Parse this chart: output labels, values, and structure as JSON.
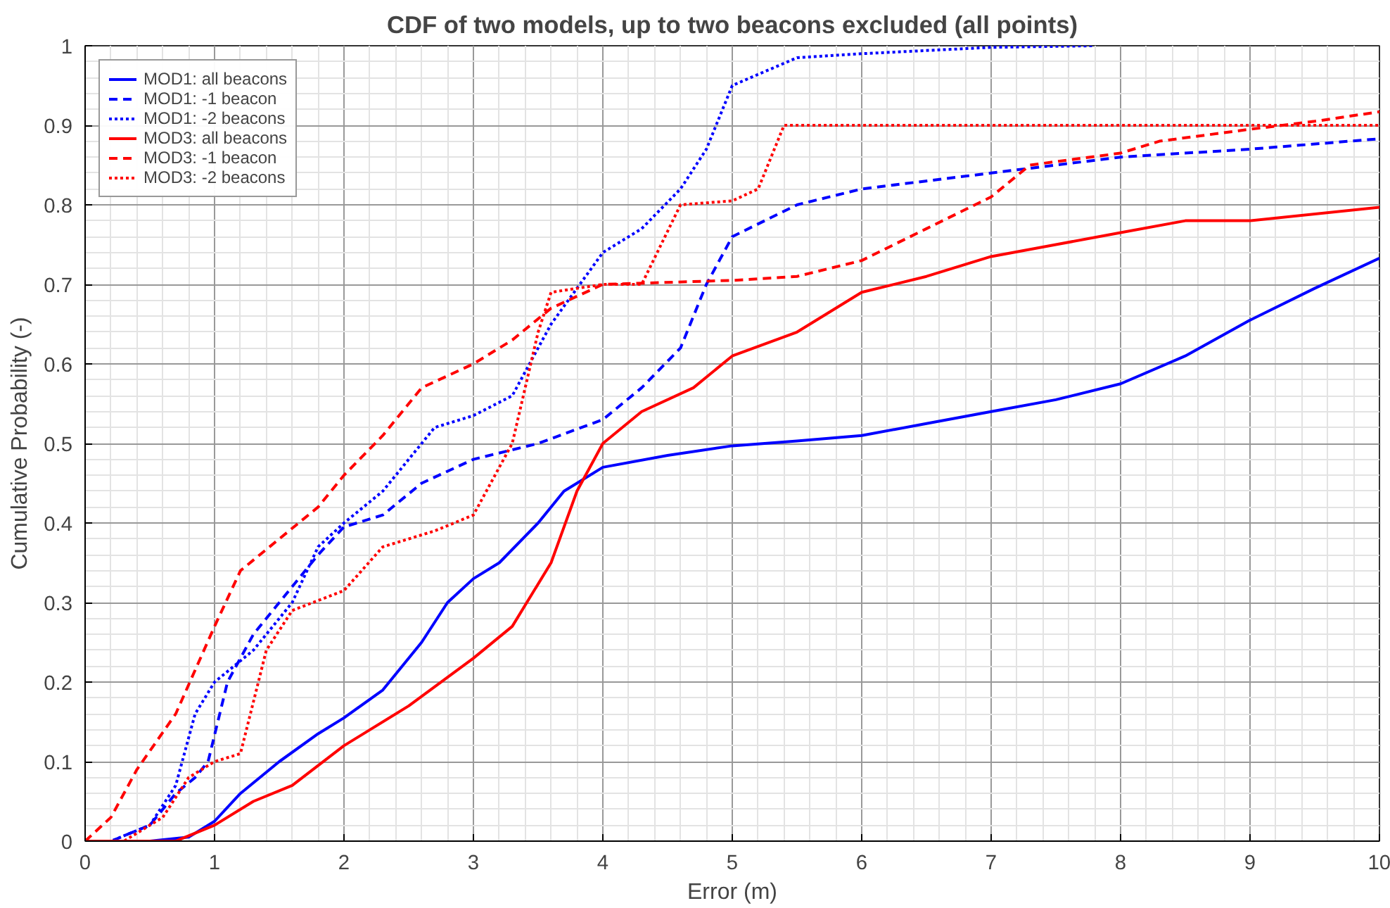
{
  "chart_data": {
    "type": "line",
    "title": "CDF of two models, up to two beacons excluded (all points)",
    "xlabel": "Error (m)",
    "ylabel": "Cumulative Probability (-)",
    "xlim": [
      0,
      10
    ],
    "ylim": [
      0,
      1
    ],
    "xticks": [
      0,
      1,
      2,
      3,
      4,
      5,
      6,
      7,
      8,
      9,
      10
    ],
    "yticks": [
      0,
      0.1,
      0.2,
      0.3,
      0.4,
      0.5,
      0.6,
      0.7,
      0.8,
      0.9,
      1
    ],
    "grid": true,
    "legend": "top left",
    "marker": "none",
    "series": [
      {
        "name": "MOD1: all beacons",
        "color": "#0000ff",
        "line_style": "solid",
        "x": [
          0,
          0.5,
          0.8,
          1.0,
          1.2,
          1.5,
          1.8,
          2.0,
          2.3,
          2.6,
          2.8,
          3.0,
          3.2,
          3.5,
          3.7,
          4.0,
          4.5,
          5.0,
          5.5,
          6.0,
          6.5,
          7.0,
          7.5,
          8.0,
          8.5,
          9.0,
          9.5,
          10
        ],
        "values": [
          0,
          0,
          0.005,
          0.025,
          0.06,
          0.1,
          0.135,
          0.155,
          0.19,
          0.25,
          0.3,
          0.33,
          0.35,
          0.4,
          0.44,
          0.47,
          0.485,
          0.497,
          0.503,
          0.51,
          0.525,
          0.54,
          0.555,
          0.575,
          0.61,
          0.655,
          0.695,
          0.733
        ]
      },
      {
        "name": "MOD1: -1 beacon",
        "color": "#0000ff",
        "line_style": "dashed",
        "x": [
          0,
          0.2,
          0.5,
          0.7,
          0.85,
          0.95,
          1.1,
          1.3,
          1.5,
          1.8,
          2.0,
          2.3,
          2.6,
          3.0,
          3.5,
          4.0,
          4.3,
          4.6,
          4.8,
          5.0,
          5.5,
          6.0,
          7.0,
          8.0,
          9.0,
          10
        ],
        "values": [
          0,
          0,
          0.02,
          0.06,
          0.08,
          0.1,
          0.2,
          0.26,
          0.3,
          0.36,
          0.395,
          0.41,
          0.45,
          0.48,
          0.5,
          0.53,
          0.57,
          0.62,
          0.7,
          0.76,
          0.8,
          0.82,
          0.84,
          0.86,
          0.87,
          0.883
        ]
      },
      {
        "name": "MOD1: -2 beacons",
        "color": "#0000ff",
        "line_style": "dotted",
        "x": [
          0,
          0.2,
          0.5,
          0.7,
          0.85,
          1.0,
          1.3,
          1.6,
          1.8,
          2.0,
          2.3,
          2.7,
          3.0,
          3.3,
          3.6,
          4.0,
          4.3,
          4.6,
          4.8,
          5.0,
          5.5,
          6.0,
          7.0,
          7.8
        ],
        "values": [
          0,
          0,
          0.02,
          0.07,
          0.16,
          0.2,
          0.24,
          0.3,
          0.37,
          0.4,
          0.44,
          0.52,
          0.535,
          0.56,
          0.65,
          0.74,
          0.77,
          0.82,
          0.87,
          0.95,
          0.985,
          0.99,
          0.998,
          1
        ]
      },
      {
        "name": "MOD3: all beacons",
        "color": "#ff0000",
        "line_style": "solid",
        "x": [
          0,
          0.7,
          1.0,
          1.3,
          1.6,
          2.0,
          2.5,
          3.0,
          3.3,
          3.6,
          3.8,
          4.0,
          4.3,
          4.7,
          5.0,
          5.5,
          6.0,
          6.5,
          7.0,
          7.5,
          8.0,
          8.5,
          9.0,
          10
        ],
        "values": [
          0,
          0,
          0.02,
          0.05,
          0.07,
          0.12,
          0.17,
          0.23,
          0.27,
          0.35,
          0.44,
          0.5,
          0.54,
          0.57,
          0.61,
          0.64,
          0.69,
          0.71,
          0.735,
          0.75,
          0.765,
          0.78,
          0.78,
          0.797
        ]
      },
      {
        "name": "MOD3: -1 beacon",
        "color": "#ff0000",
        "line_style": "dashed",
        "x": [
          0,
          0.2,
          0.4,
          0.7,
          1.0,
          1.2,
          1.5,
          1.8,
          2.0,
          2.3,
          2.6,
          3.0,
          3.3,
          3.6,
          4.0,
          5.0,
          5.5,
          6.0,
          6.5,
          7.0,
          7.3,
          8.0,
          8.3,
          9.0,
          9.5,
          10
        ],
        "values": [
          0,
          0.03,
          0.09,
          0.16,
          0.27,
          0.34,
          0.38,
          0.42,
          0.46,
          0.51,
          0.57,
          0.6,
          0.63,
          0.67,
          0.7,
          0.705,
          0.71,
          0.73,
          0.77,
          0.81,
          0.85,
          0.865,
          0.88,
          0.895,
          0.905,
          0.917
        ]
      },
      {
        "name": "MOD3: -2 beacons",
        "color": "#ff0000",
        "line_style": "dotted",
        "x": [
          0,
          0.3,
          0.6,
          0.8,
          1.0,
          1.2,
          1.4,
          1.6,
          2.0,
          2.3,
          2.7,
          3.0,
          3.3,
          3.5,
          3.6,
          4.0,
          4.3,
          4.6,
          5.0,
          5.2,
          5.4,
          10
        ],
        "values": [
          0,
          0,
          0.03,
          0.08,
          0.1,
          0.11,
          0.24,
          0.29,
          0.315,
          0.37,
          0.39,
          0.41,
          0.5,
          0.64,
          0.69,
          0.7,
          0.7,
          0.8,
          0.805,
          0.82,
          0.9,
          0.9
        ]
      }
    ]
  }
}
